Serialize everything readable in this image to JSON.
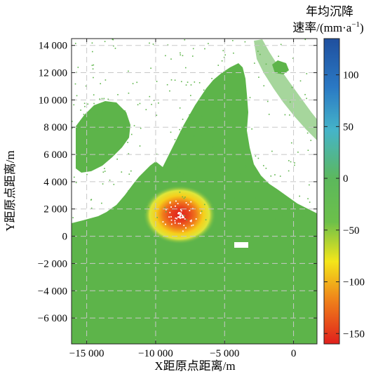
{
  "chart_data": {
    "type": "heatmap",
    "xlabel": "X距原点距离/m",
    "ylabel": "Y距原点距离/m",
    "xlim": [
      -16100,
      1700
    ],
    "ylim": [
      -7900,
      14500
    ],
    "xticks": [
      -15000,
      -10000,
      -5000,
      0
    ],
    "xtick_labels": [
      "−15 000",
      "−10 000",
      "−5 000",
      "0"
    ],
    "yticks": [
      14000,
      12000,
      10000,
      8000,
      6000,
      4000,
      2000,
      0,
      -2000,
      -4000,
      -6000
    ],
    "ytick_labels": [
      "14 000",
      "12 000",
      "10 000",
      "8 000",
      "6 000",
      "4 000",
      "2 000",
      "0",
      "−2 000",
      "−4 000",
      "−6 000"
    ],
    "grid": true,
    "colorbar": {
      "title_line1": "年均沉降",
      "title_line2": "速率/(mm·a",
      "title_sup": "−1",
      "title_close": ")",
      "range": [
        -160,
        135
      ],
      "ticks": [
        100,
        50,
        0,
        -50,
        -100,
        -150
      ],
      "tick_labels": [
        "100",
        "50",
        "0",
        "−50",
        "−100",
        "−150"
      ],
      "colormap": [
        "#e0201c",
        "#ef7f1a",
        "#f4e61a",
        "#5cb85c",
        "#45b4a9",
        "#3399d6",
        "#1f4f9e"
      ]
    },
    "background_value_mm_per_a": 0,
    "background_color": "#5db44a",
    "subsidence_center": {
      "x": -8300,
      "y": 1700,
      "min_rate": -150
    }
  }
}
